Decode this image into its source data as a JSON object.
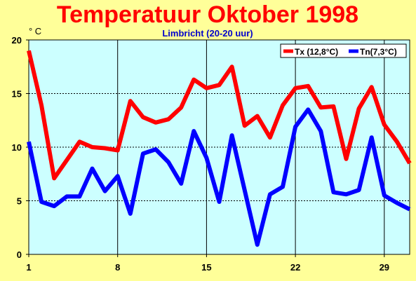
{
  "chart_data": {
    "type": "line",
    "title": "Temperatuur Oktober 1998",
    "subtitle": "Limbricht (20-20 uur)",
    "unit_label": "° C",
    "xlim": [
      1,
      31
    ],
    "ylim": [
      0,
      20
    ],
    "x_ticks": [
      1,
      8,
      15,
      22,
      29
    ],
    "y_ticks": [
      0,
      5,
      10,
      15,
      20
    ],
    "grid": true,
    "legend_position": "top-right",
    "x": [
      1,
      2,
      3,
      4,
      5,
      6,
      7,
      8,
      9,
      10,
      11,
      12,
      13,
      14,
      15,
      16,
      17,
      18,
      19,
      20,
      21,
      22,
      23,
      24,
      25,
      26,
      27,
      28,
      29,
      30,
      31
    ],
    "series": [
      {
        "name": "Tx (12,8°C)",
        "color": "#FF0000",
        "values": [
          19.0,
          13.9,
          7.1,
          8.8,
          10.5,
          10.0,
          9.9,
          9.7,
          14.3,
          12.8,
          12.3,
          12.6,
          13.7,
          16.3,
          15.5,
          15.8,
          17.5,
          12.0,
          12.9,
          10.9,
          13.9,
          15.5,
          15.7,
          13.7,
          13.8,
          8.9,
          13.6,
          15.6,
          12.1,
          10.5,
          8.5
        ]
      },
      {
        "name": "Tn(7,3°C)",
        "color": "#0000FF",
        "values": [
          10.5,
          4.9,
          4.5,
          5.4,
          5.4,
          8.0,
          5.9,
          7.3,
          3.8,
          9.4,
          9.8,
          8.6,
          6.6,
          11.5,
          9.0,
          4.9,
          11.1,
          6.0,
          0.9,
          5.6,
          6.3,
          11.9,
          13.5,
          11.5,
          5.8,
          5.6,
          6.0,
          10.9,
          5.5,
          4.8,
          4.2
        ]
      }
    ]
  }
}
